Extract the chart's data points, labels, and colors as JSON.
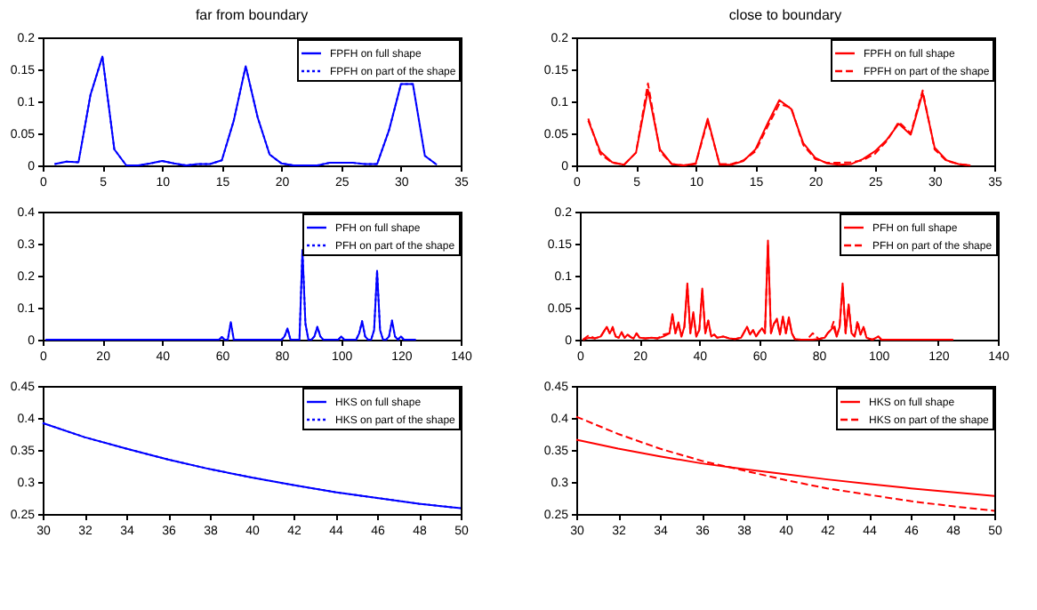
{
  "chart_data": [
    {
      "type": "line",
      "title": "far from boundary",
      "xlim": [
        0,
        35
      ],
      "xticks": [
        0,
        5,
        10,
        15,
        20,
        25,
        30,
        35
      ],
      "ylim": [
        0,
        0.2
      ],
      "yticks": [
        0,
        0.05,
        0.1,
        0.15,
        0.2
      ],
      "grid": false,
      "legend": "top right",
      "marker": "none",
      "x": [
        1,
        2,
        3,
        4,
        5,
        6,
        7,
        8,
        9,
        10,
        11,
        12,
        13,
        14,
        15,
        16,
        17,
        18,
        19,
        20,
        21,
        22,
        23,
        24,
        25,
        26,
        27,
        28,
        29,
        30,
        31,
        32,
        33
      ],
      "series": [
        {
          "name": "FPFH on full shape",
          "color": "#0000ff",
          "line_style": "solid",
          "values": [
            0.002,
            0.006,
            0.005,
            0.11,
            0.17,
            0.025,
            0,
            0,
            0.003,
            0.007,
            0.003,
            0,
            0.002,
            0.002,
            0.008,
            0.07,
            0.155,
            0.075,
            0.017,
            0.003,
            0,
            0,
            0,
            0.004,
            0.004,
            0.004,
            0.002,
            0.002,
            0.055,
            0.127,
            0.127,
            0.015,
            0.001
          ]
        },
        {
          "name": "FPFH on part of the shape",
          "color": "#0000ff",
          "line_style": "dotted",
          "values": [
            0.002,
            0.006,
            0.005,
            0.11,
            0.17,
            0.025,
            0,
            0,
            0.003,
            0.007,
            0.003,
            0,
            0.002,
            0.002,
            0.008,
            0.07,
            0.155,
            0.075,
            0.017,
            0.003,
            0,
            0,
            0,
            0.004,
            0.004,
            0.004,
            0.002,
            0.002,
            0.055,
            0.127,
            0.127,
            0.015,
            0.001
          ]
        }
      ]
    },
    {
      "type": "line",
      "title": "close to boundary",
      "xlim": [
        0,
        35
      ],
      "xticks": [
        0,
        5,
        10,
        15,
        20,
        25,
        30,
        35
      ],
      "ylim": [
        0,
        0.2
      ],
      "yticks": [
        0,
        0.05,
        0.1,
        0.15,
        0.2
      ],
      "grid": false,
      "legend": "top right",
      "marker": "none",
      "x": [
        1,
        2,
        3,
        4,
        5,
        6,
        7,
        8,
        9,
        10,
        11,
        12,
        13,
        14,
        15,
        16,
        17,
        18,
        19,
        20,
        21,
        22,
        23,
        24,
        25,
        26,
        27,
        28,
        29,
        30,
        31,
        32,
        33
      ],
      "series": [
        {
          "name": "FPFH on full shape",
          "color": "#ff0000",
          "line_style": "solid",
          "values": [
            0.07,
            0.022,
            0.005,
            0.001,
            0.02,
            0.118,
            0.025,
            0.002,
            0,
            0.003,
            0.073,
            0.001,
            0.001,
            0.007,
            0.025,
            0.065,
            0.102,
            0.088,
            0.035,
            0.012,
            0.003,
            0.001,
            0.002,
            0.01,
            0.022,
            0.04,
            0.065,
            0.048,
            0.113,
            0.028,
            0.008,
            0.002,
            0
          ]
        },
        {
          "name": "FPFH on part of the shape",
          "color": "#ff0000",
          "line_style": "dashed",
          "values": [
            0.073,
            0.018,
            0.004,
            0.001,
            0.02,
            0.128,
            0.022,
            0.002,
            0,
            0.002,
            0.07,
            0.002,
            0.002,
            0.008,
            0.022,
            0.06,
            0.096,
            0.09,
            0.032,
            0.01,
            0.004,
            0.004,
            0.005,
            0.008,
            0.018,
            0.038,
            0.068,
            0.05,
            0.117,
            0.025,
            0.007,
            0.002,
            0
          ]
        }
      ]
    },
    {
      "type": "line",
      "xlim": [
        0,
        140
      ],
      "xticks": [
        0,
        20,
        40,
        60,
        80,
        100,
        120,
        140
      ],
      "ylim": [
        0,
        0.4
      ],
      "yticks": [
        0,
        0.1,
        0.2,
        0.3,
        0.4
      ],
      "grid": false,
      "legend": "top right",
      "marker": "none",
      "x": [
        1,
        59,
        60,
        61,
        62,
        63,
        64,
        65,
        80,
        81,
        82,
        83,
        84,
        85,
        86,
        87,
        88,
        89,
        90,
        91,
        92,
        93,
        94,
        99,
        100,
        101,
        105,
        106,
        107,
        108,
        109,
        110,
        111,
        112,
        113,
        114,
        115,
        116,
        117,
        118,
        119,
        120,
        121,
        125
      ],
      "series": [
        {
          "name": "PFH on full shape",
          "color": "#0000ff",
          "line_style": "solid",
          "values": [
            0,
            0,
            0.008,
            0,
            0,
            0.055,
            0,
            0,
            0,
            0.01,
            0.035,
            0,
            0,
            0,
            0,
            0.28,
            0.05,
            0,
            0,
            0.01,
            0.04,
            0.01,
            0,
            0,
            0.01,
            0,
            0,
            0.02,
            0.058,
            0.01,
            0,
            0,
            0.03,
            0.215,
            0.03,
            0,
            0,
            0.01,
            0.06,
            0.01,
            0,
            0.01,
            0,
            0
          ]
        },
        {
          "name": "PFH on part of the shape",
          "color": "#0000ff",
          "line_style": "dotted",
          "values": [
            0,
            0,
            0.008,
            0,
            0,
            0.055,
            0,
            0,
            0,
            0.01,
            0.035,
            0,
            0,
            0,
            0,
            0.28,
            0.05,
            0,
            0,
            0.01,
            0.04,
            0.01,
            0,
            0,
            0.01,
            0,
            0,
            0.02,
            0.058,
            0.01,
            0,
            0,
            0.03,
            0.215,
            0.03,
            0,
            0,
            0.01,
            0.06,
            0.01,
            0,
            0.01,
            0,
            0
          ]
        }
      ]
    },
    {
      "type": "line",
      "xlim": [
        0,
        140
      ],
      "xticks": [
        0,
        20,
        40,
        60,
        80,
        100,
        120,
        140
      ],
      "ylim": [
        0,
        0.2
      ],
      "yticks": [
        0,
        0.05,
        0.1,
        0.15,
        0.2
      ],
      "grid": false,
      "legend": "top right",
      "marker": "none",
      "x": [
        1,
        3,
        5,
        7,
        9,
        10,
        11,
        12,
        13,
        14,
        15,
        16,
        17,
        18,
        19,
        20,
        22,
        24,
        26,
        28,
        30,
        31,
        32,
        33,
        34,
        35,
        36,
        37,
        38,
        39,
        40,
        41,
        42,
        43,
        44,
        45,
        46,
        48,
        50,
        52,
        54,
        56,
        57,
        58,
        59,
        60,
        61,
        62,
        63,
        64,
        65,
        66,
        67,
        68,
        69,
        70,
        71,
        72,
        74,
        76,
        78,
        80,
        82,
        83,
        84,
        85,
        86,
        87,
        88,
        89,
        90,
        91,
        92,
        93,
        94,
        95,
        96,
        98,
        100,
        101,
        102,
        110,
        120,
        125
      ],
      "series": [
        {
          "name": "PFH on full shape",
          "color": "#ff0000",
          "line_style": "solid",
          "values": [
            0,
            0.003,
            0.002,
            0.005,
            0.02,
            0.01,
            0.018,
            0.005,
            0.003,
            0.012,
            0.003,
            0.008,
            0.004,
            0.002,
            0.01,
            0.003,
            0.002,
            0.003,
            0.002,
            0.005,
            0.01,
            0.04,
            0.01,
            0.027,
            0.005,
            0.02,
            0.088,
            0.01,
            0.043,
            0.005,
            0.015,
            0.08,
            0.01,
            0.03,
            0.005,
            0.008,
            0.003,
            0.005,
            0.002,
            0.001,
            0.003,
            0.02,
            0.008,
            0.015,
            0.005,
            0.012,
            0.018,
            0.01,
            0.155,
            0.01,
            0.025,
            0.033,
            0.008,
            0.036,
            0.01,
            0.035,
            0.01,
            0.001,
            0,
            0,
            0,
            0.001,
            0.003,
            0.01,
            0.015,
            0.02,
            0.005,
            0.02,
            0.088,
            0.01,
            0.055,
            0.01,
            0.005,
            0.025,
            0.008,
            0.02,
            0.003,
            0,
            0.005,
            0,
            0,
            0,
            0,
            0
          ]
        },
        {
          "name": "PFH on part of the shape",
          "color": "#ff0000",
          "line_style": "dashed",
          "values": [
            0,
            0.007,
            0.002,
            0.005,
            0.02,
            0.01,
            0.02,
            0.005,
            0.003,
            0.01,
            0.003,
            0.008,
            0.004,
            0.002,
            0.01,
            0.003,
            0.002,
            0.003,
            0.002,
            0.008,
            0.01,
            0.038,
            0.01,
            0.025,
            0.005,
            0.02,
            0.085,
            0.01,
            0.04,
            0.005,
            0.015,
            0.078,
            0.01,
            0.03,
            0.005,
            0.008,
            0.003,
            0.005,
            0.002,
            0.001,
            0.003,
            0.02,
            0.008,
            0.015,
            0.005,
            0.012,
            0.018,
            0.01,
            0.15,
            0.01,
            0.025,
            0.03,
            0.008,
            0.035,
            0.01,
            0.033,
            0.01,
            0.001,
            0,
            0,
            0.01,
            0.001,
            0.003,
            0.01,
            0.015,
            0.028,
            0.005,
            0.02,
            0.085,
            0.01,
            0.055,
            0.01,
            0.005,
            0.03,
            0.008,
            0.02,
            0.003,
            0,
            0.005,
            0,
            0,
            0,
            0,
            0
          ]
        }
      ]
    },
    {
      "type": "line",
      "xlim": [
        30,
        50
      ],
      "xticks": [
        30,
        32,
        34,
        36,
        38,
        40,
        42,
        44,
        46,
        48,
        50
      ],
      "ylim": [
        0.25,
        0.45
      ],
      "yticks": [
        0.25,
        0.3,
        0.35,
        0.4,
        0.45
      ],
      "grid": false,
      "legend": "top right",
      "marker": "none",
      "x": [
        30,
        32,
        34,
        36,
        38,
        40,
        42,
        44,
        46,
        48,
        50
      ],
      "series": [
        {
          "name": "HKS on full shape",
          "color": "#0000ff",
          "line_style": "solid",
          "values": [
            0.392,
            0.37,
            0.352,
            0.335,
            0.32,
            0.307,
            0.295,
            0.284,
            0.275,
            0.266,
            0.259
          ]
        },
        {
          "name": "HKS on part of the shape",
          "color": "#0000ff",
          "line_style": "dotted",
          "values": [
            0.392,
            0.37,
            0.352,
            0.335,
            0.32,
            0.307,
            0.295,
            0.284,
            0.275,
            0.266,
            0.259
          ]
        }
      ]
    },
    {
      "type": "line",
      "xlim": [
        30,
        50
      ],
      "xticks": [
        30,
        32,
        34,
        36,
        38,
        40,
        42,
        44,
        46,
        48,
        50
      ],
      "ylim": [
        0.25,
        0.45
      ],
      "yticks": [
        0.25,
        0.3,
        0.35,
        0.4,
        0.45
      ],
      "grid": false,
      "legend": "top right",
      "marker": "none",
      "x": [
        30,
        32,
        34,
        36,
        38,
        40,
        42,
        44,
        46,
        48,
        50
      ],
      "series": [
        {
          "name": "HKS on full shape",
          "color": "#ff0000",
          "line_style": "solid",
          "values": [
            0.366,
            0.352,
            0.34,
            0.329,
            0.32,
            0.312,
            0.304,
            0.297,
            0.29,
            0.284,
            0.278
          ]
        },
        {
          "name": "HKS on part of the shape",
          "color": "#ff0000",
          "line_style": "dashed",
          "values": [
            0.402,
            0.375,
            0.352,
            0.333,
            0.318,
            0.303,
            0.29,
            0.28,
            0.27,
            0.262,
            0.255
          ]
        }
      ]
    }
  ]
}
